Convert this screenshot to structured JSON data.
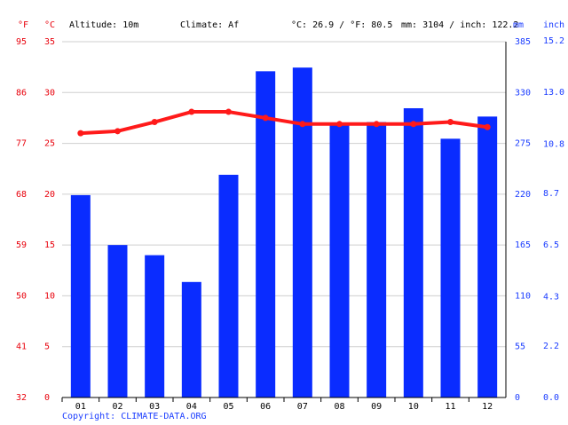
{
  "chart_data": {
    "type": "bar-line",
    "header": {
      "altitude": "Altitude: 10m",
      "climate": "Climate: Af",
      "avg_temp": "°C: 26.9 / °F: 80.5",
      "precip": "mm: 3104 / inch: 122.2"
    },
    "unit_f": "°F",
    "unit_c": "°C",
    "unit_mm": "mm",
    "unit_inch": "inch",
    "copyright": "Copyright: CLIMATE-DATA.ORG",
    "categories": [
      "01",
      "02",
      "03",
      "04",
      "05",
      "06",
      "07",
      "08",
      "09",
      "10",
      "11",
      "12"
    ],
    "series": [
      {
        "name": "Precipitation",
        "axis": "y2",
        "kind": "bar",
        "color": "#0a2cff",
        "values": [
          219,
          165,
          154,
          125,
          241,
          353,
          357,
          295,
          298,
          313,
          280,
          304
        ]
      },
      {
        "name": "Temperature",
        "kind": "line",
        "color": "#ff1a1a",
        "values": [
          26.0,
          26.2,
          27.1,
          28.1,
          28.1,
          27.5,
          26.9,
          26.9,
          26.9,
          26.9,
          27.1,
          26.6
        ]
      }
    ],
    "ylim": [
      0,
      35
    ],
    "yticks": [
      0,
      5,
      10,
      15,
      20,
      25,
      30,
      35
    ],
    "flim": [
      32,
      95
    ],
    "fticks": [
      32,
      41,
      50,
      59,
      68,
      77,
      86,
      95
    ],
    "y2lim": [
      0,
      385
    ],
    "y2ticks": [
      0,
      55,
      110,
      165,
      220,
      275,
      330,
      385
    ],
    "inchlim": [
      0,
      15.16
    ],
    "inchticks": [
      {
        "value": 0,
        "label": "0.0"
      },
      2.2,
      4.3,
      6.5,
      8.7,
      10.8,
      {
        "value": 13,
        "label": "13.0"
      },
      15.2
    ],
    "grid": true
  }
}
